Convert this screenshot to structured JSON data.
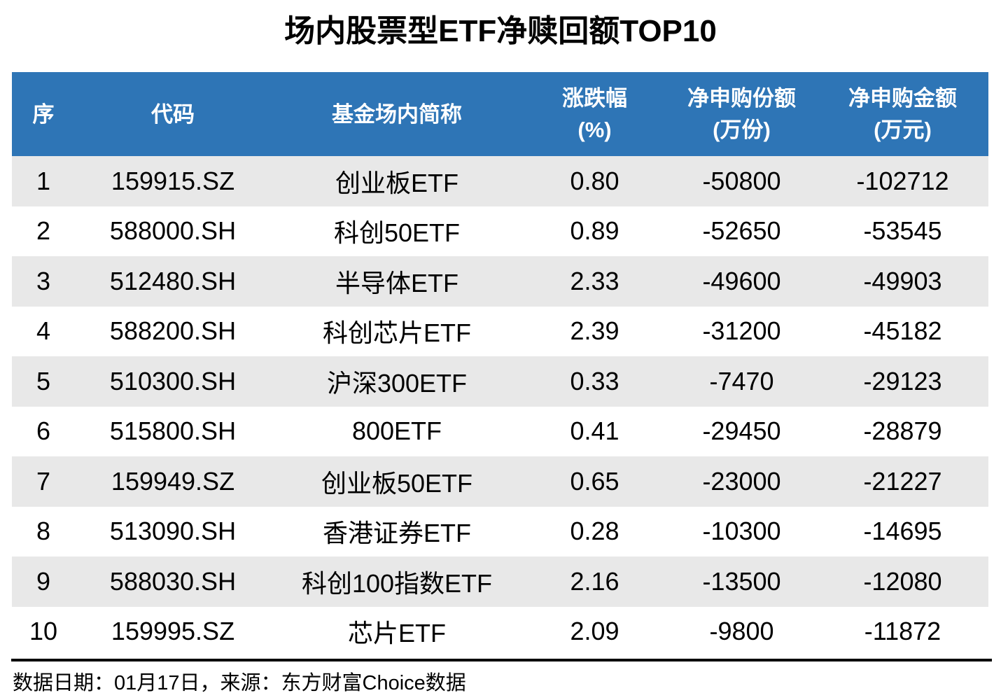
{
  "title": "场内股票型ETF净赎回额TOP10",
  "chart_data": {
    "type": "table",
    "title": "场内股票型ETF净赎回额TOP10",
    "columns": [
      {
        "label": "序",
        "sub": ""
      },
      {
        "label": "代码",
        "sub": ""
      },
      {
        "label": "基金场内简称",
        "sub": ""
      },
      {
        "label": "涨跌幅",
        "sub": "(%)"
      },
      {
        "label": "净申购份额",
        "sub": "(万份)"
      },
      {
        "label": "净申购金额",
        "sub": "(万元)"
      }
    ],
    "rows": [
      [
        "1",
        "159915.SZ",
        "创业板ETF",
        "0.80",
        "-50800",
        "-102712"
      ],
      [
        "2",
        "588000.SH",
        "科创50ETF",
        "0.89",
        "-52650",
        "-53545"
      ],
      [
        "3",
        "512480.SH",
        "半导体ETF",
        "2.33",
        "-49600",
        "-49903"
      ],
      [
        "4",
        "588200.SH",
        "科创芯片ETF",
        "2.39",
        "-31200",
        "-45182"
      ],
      [
        "5",
        "510300.SH",
        "沪深300ETF",
        "0.33",
        "-7470",
        "-29123"
      ],
      [
        "6",
        "515800.SH",
        "800ETF",
        "0.41",
        "-29450",
        "-28879"
      ],
      [
        "7",
        "159949.SZ",
        "创业板50ETF",
        "0.65",
        "-23000",
        "-21227"
      ],
      [
        "8",
        "513090.SH",
        "香港证券ETF",
        "0.28",
        "-10300",
        "-14695"
      ],
      [
        "9",
        "588030.SH",
        "科创100指数ETF",
        "2.16",
        "-13500",
        "-12080"
      ],
      [
        "10",
        "159995.SZ",
        "芯片ETF",
        "2.09",
        "-9800",
        "-11872"
      ]
    ]
  },
  "footer": {
    "text": "数据日期：01月17日，来源：东方财富Choice数据"
  },
  "colors": {
    "header_bg": "#2E75B6",
    "header_text": "#FFFFFF",
    "row_alt_bg": "#E8E8E8",
    "row_bg": "#FFFFFF",
    "rule": "#000000"
  }
}
